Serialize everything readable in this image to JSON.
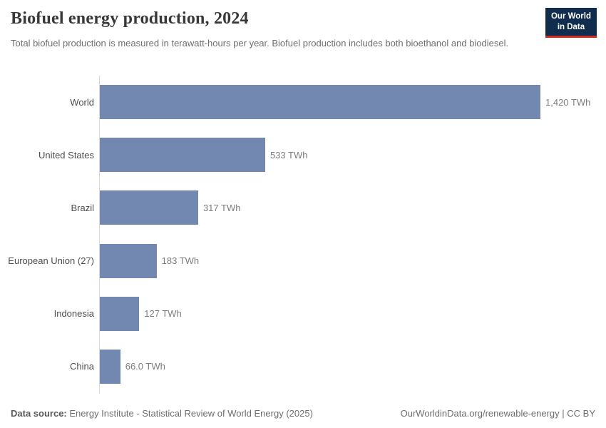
{
  "header": {
    "title": "Biofuel energy production, 2024",
    "subtitle": "Total biofuel production is measured in terawatt-hours per year. Biofuel production includes both bioethanol and biodiesel."
  },
  "logo": {
    "line1": "Our World",
    "line2": "in Data",
    "bg_color": "#102d4e",
    "accent_color": "#d42a20"
  },
  "chart_data": {
    "type": "bar",
    "orientation": "horizontal",
    "title": "Biofuel energy production, 2024",
    "unit": "TWh",
    "categories": [
      "World",
      "United States",
      "Brazil",
      "European Union (27)",
      "Indonesia",
      "China"
    ],
    "values": [
      1420,
      533,
      317,
      183,
      127,
      66.0
    ],
    "value_labels": [
      "1,420 TWh",
      "533 TWh",
      "317 TWh",
      "183 TWh",
      "127 TWh",
      "66.0 TWh"
    ],
    "xlim": [
      0,
      1420
    ],
    "bar_color": "#7288b0",
    "grid": "off",
    "legend": "none"
  },
  "footer": {
    "datasource_label": "Data source:",
    "datasource_text": "Energy Institute - Statistical Review of World Energy (2025)",
    "attribution": "OurWorldinData.org/renewable-energy | CC BY"
  }
}
